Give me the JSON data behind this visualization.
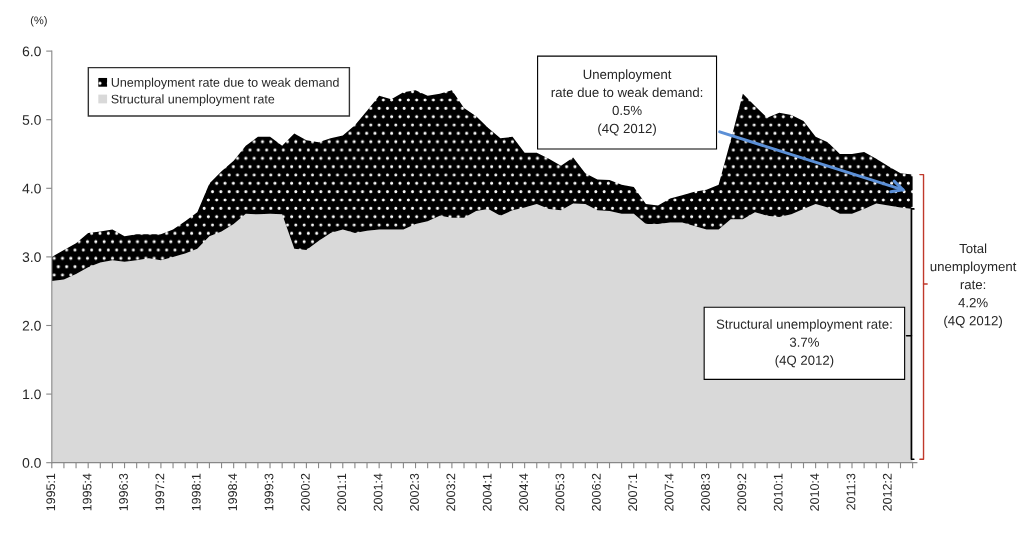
{
  "chart_data": {
    "type": "area",
    "stacked": true,
    "ylabel": "(%)",
    "categories": [
      "1995:1",
      null,
      null,
      "1995:4",
      null,
      null,
      "1996:3",
      null,
      null,
      "1997:2",
      null,
      null,
      "1998:1",
      null,
      null,
      "1998:4",
      null,
      null,
      "1999:3",
      null,
      null,
      "2000:2",
      null,
      null,
      "2001:1",
      null,
      null,
      "2001:4",
      null,
      null,
      "2002:3",
      null,
      null,
      "2003:2",
      null,
      null,
      "2004:1",
      null,
      null,
      "2004:4",
      null,
      null,
      "2005:3",
      null,
      null,
      "2006:2",
      null,
      null,
      "2007:1",
      null,
      null,
      "2007:4",
      null,
      null,
      "2008:3",
      null,
      null,
      "2009:2",
      null,
      null,
      "2010:1",
      null,
      null,
      "2010:4",
      null,
      null,
      "2011:3",
      null,
      null,
      "2012:2",
      null,
      null
    ],
    "series": [
      {
        "name": "Structural unemployment rate",
        "color": "#d9d9d9",
        "values": [
          2.65,
          2.67,
          2.75,
          2.85,
          2.92,
          2.95,
          2.93,
          2.95,
          2.98,
          2.95,
          3.0,
          3.05,
          3.12,
          3.3,
          3.37,
          3.48,
          3.63,
          3.62,
          3.63,
          3.62,
          3.12,
          3.1,
          3.23,
          3.35,
          3.4,
          3.35,
          3.38,
          3.4,
          3.4,
          3.4,
          3.48,
          3.52,
          3.6,
          3.57,
          3.57,
          3.67,
          3.7,
          3.6,
          3.68,
          3.72,
          3.77,
          3.7,
          3.68,
          3.78,
          3.77,
          3.68,
          3.67,
          3.63,
          3.63,
          3.48,
          3.48,
          3.5,
          3.5,
          3.45,
          3.4,
          3.4,
          3.55,
          3.55,
          3.65,
          3.6,
          3.58,
          3.62,
          3.7,
          3.77,
          3.72,
          3.63,
          3.63,
          3.7,
          3.78,
          3.75,
          3.72,
          3.7
        ]
      },
      {
        "name": "Unemployment rate due to weak demand",
        "color": "#000000",
        "values": [
          0.35,
          0.43,
          0.45,
          0.5,
          0.45,
          0.45,
          0.37,
          0.38,
          0.35,
          0.38,
          0.4,
          0.47,
          0.53,
          0.77,
          0.88,
          0.92,
          0.99,
          1.13,
          1.12,
          1.0,
          1.68,
          1.6,
          1.44,
          1.38,
          1.37,
          1.57,
          1.75,
          1.95,
          1.9,
          2.0,
          1.95,
          1.83,
          1.78,
          1.86,
          1.6,
          1.38,
          1.18,
          1.13,
          1.07,
          0.8,
          0.75,
          0.73,
          0.65,
          0.67,
          0.45,
          0.45,
          0.45,
          0.42,
          0.39,
          0.29,
          0.27,
          0.35,
          0.4,
          0.5,
          0.58,
          0.65,
          1.15,
          1.83,
          1.55,
          1.43,
          1.52,
          1.45,
          1.28,
          0.98,
          0.95,
          0.87,
          0.87,
          0.83,
          0.65,
          0.57,
          0.5,
          0.5
        ]
      }
    ],
    "ylim": [
      0,
      6
    ],
    "yticks": [
      {
        "value": 0,
        "label": "0.0"
      },
      {
        "value": 1,
        "label": "1.0"
      },
      {
        "value": 2,
        "label": "2.0"
      },
      {
        "value": 3,
        "label": "3.0"
      },
      {
        "value": 4,
        "label": "4.0"
      },
      {
        "value": 5,
        "label": "5.0"
      },
      {
        "value": 6,
        "label": "6.0"
      }
    ],
    "grid": false,
    "legend": "top left",
    "annotations": [
      "Unemployment\nrate due to weak demand:\n0.5%\n(4Q 2012)",
      "Structural unemployment rate:\n3.7%\n(4Q 2012)",
      "Total\nunemployment\nrate:\n4.2%\n(4Q 2012)"
    ]
  }
}
